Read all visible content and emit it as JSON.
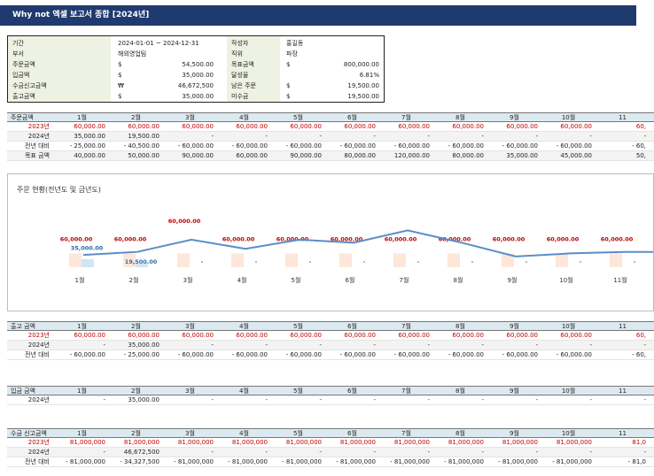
{
  "title": "Why not 엑셀 보고서 종합 [2024년]",
  "colors": {
    "title_bg": "#1f3a6e",
    "header_bg": "#dce9f0",
    "prev_year_red": "#c00000",
    "line_blue": "#5b8dc9",
    "bar_light": "#fde6da",
    "bar_blue": "#cfe6f4"
  },
  "summary": {
    "left": [
      {
        "label": "기간",
        "cur": "",
        "value": "2024-01-01 ~ 2024-12-31"
      },
      {
        "label": "부서",
        "cur": "",
        "value": "해외영업팀"
      },
      {
        "label": "주문금액",
        "cur": "$",
        "value": "54,500.00"
      },
      {
        "label": "입금액",
        "cur": "$",
        "value": "35,000.00"
      },
      {
        "label": "수금신고금액",
        "cur": "₩",
        "value": "46,672,500"
      },
      {
        "label": "출고금액",
        "cur": "$",
        "value": "35,000.00"
      }
    ],
    "right": [
      {
        "label": "작성자",
        "cur": "",
        "value": "홍길동"
      },
      {
        "label": "직위",
        "cur": "",
        "value": "파장"
      },
      {
        "label": "목표금액",
        "cur": "$",
        "value": "800,000.00"
      },
      {
        "label": "달성율",
        "cur": "",
        "value": "6.81%"
      },
      {
        "label": "남은 주문",
        "cur": "$",
        "value": "19,500.00"
      },
      {
        "label": "미수금",
        "cur": "$",
        "value": "19,500.00"
      }
    ]
  },
  "months": [
    "1월",
    "2월",
    "3월",
    "4월",
    "5월",
    "6월",
    "7월",
    "8월",
    "9월",
    "10월",
    "11"
  ],
  "orders": {
    "header": "주문금액",
    "rows": [
      {
        "label": "2023년",
        "cells": [
          "60,000.00",
          "60,000.00",
          "60,000.00",
          "60,000.00",
          "60,000.00",
          "60,000.00",
          "60,000.00",
          "60,000.00",
          "60,000.00",
          "60,000.00",
          "60,"
        ]
      },
      {
        "label": "2024년",
        "cells": [
          "35,000.00",
          "19,500.00",
          "-",
          "-",
          "-",
          "-",
          "-",
          "-",
          "-",
          "-",
          "-"
        ]
      },
      {
        "label": "전년 대비",
        "cells": [
          "- 25,000.00",
          "- 40,500.00",
          "- 60,000.00",
          "- 60,000.00",
          "- 60,000.00",
          "- 60,000.00",
          "- 60,000.00",
          "- 60,000.00",
          "- 60,000.00",
          "- 60,000.00",
          "- 60,"
        ]
      },
      {
        "label": "목표 금액",
        "cells": [
          "40,000.00",
          "50,000.00",
          "90,000.00",
          "60,000.00",
          "90,000.00",
          "80,000.00",
          "120,000.00",
          "80,000.00",
          "35,000.00",
          "45,000.00",
          "50,"
        ]
      }
    ]
  },
  "chart": {
    "title": "주문 현황(전년도 및 금년도)",
    "categories": [
      "1월",
      "2월",
      "3월",
      "4월",
      "5월",
      "6월",
      "7월",
      "8월",
      "9월",
      "10월",
      "11월"
    ],
    "chart_data": {
      "type": "bar",
      "categories": [
        "1월",
        "2월",
        "3월",
        "4월",
        "5월",
        "6월",
        "7월",
        "8월",
        "9월",
        "10월",
        "11월"
      ],
      "series": [
        {
          "name": "2023년",
          "values": [
            60000,
            60000,
            60000,
            60000,
            60000,
            60000,
            60000,
            60000,
            60000,
            60000,
            60000
          ],
          "labels": [
            "60,000.00",
            "60,000.00",
            "60,000.00",
            "60,000.00",
            "60,000.00",
            "60,000.00",
            "60,000.00",
            "60,000.00",
            "60,000.00",
            "60,000.00",
            "60,000.00"
          ]
        },
        {
          "name": "2024년",
          "values": [
            35000,
            19500,
            0,
            0,
            0,
            0,
            0,
            0,
            0,
            0,
            0
          ],
          "labels": [
            "35,000.00",
            "19,500.00",
            "-",
            "-",
            "-",
            "-",
            "-",
            "-",
            "-",
            "-",
            "-"
          ]
        },
        {
          "name": "목표 금액",
          "type": "line",
          "values": [
            40000,
            50000,
            90000,
            60000,
            90000,
            80000,
            120000,
            80000,
            35000,
            45000,
            50000
          ]
        }
      ],
      "ylim": [
        0,
        130000
      ],
      "title": "주문 현황(전년도 및 금년도)"
    }
  },
  "shipments": {
    "header": "출고 금액",
    "rows": [
      {
        "label": "2023년",
        "cells": [
          "60,000.00",
          "60,000.00",
          "60,000.00",
          "60,000.00",
          "60,000.00",
          "60,000.00",
          "60,000.00",
          "60,000.00",
          "60,000.00",
          "60,000.00",
          "60,"
        ]
      },
      {
        "label": "2024년",
        "cells": [
          "-",
          "35,000.00",
          "-",
          "-",
          "-",
          "-",
          "-",
          "-",
          "-",
          "-",
          "-"
        ]
      },
      {
        "label": "전년 대비",
        "cells": [
          "- 60,000.00",
          "- 25,000.00",
          "- 60,000.00",
          "- 60,000.00",
          "- 60,000.00",
          "- 60,000.00",
          "- 60,000.00",
          "- 60,000.00",
          "- 60,000.00",
          "- 60,000.00",
          "- 60,"
        ]
      }
    ]
  },
  "deposits": {
    "header": "입금 금액",
    "rows": [
      {
        "label": "2024년",
        "cells": [
          "-",
          "35,000.00",
          "-",
          "-",
          "-",
          "-",
          "-",
          "-",
          "-",
          "-",
          "-"
        ]
      }
    ]
  },
  "collections": {
    "header": "수금 신고금액",
    "rows": [
      {
        "label": "2023년",
        "cells": [
          "81,000,000",
          "81,000,000",
          "81,000,000",
          "81,000,000",
          "81,000,000",
          "81,000,000",
          "81,000,000",
          "81,000,000",
          "81,000,000",
          "81,000,000",
          "81,0"
        ]
      },
      {
        "label": "2024년",
        "cells": [
          "-",
          "46,672,500",
          "-",
          "-",
          "-",
          "-",
          "-",
          "-",
          "-",
          "-",
          "-"
        ]
      },
      {
        "label": "전년 대비",
        "cells": [
          "- 81,000,000",
          "- 34,327,500",
          "- 81,000,000",
          "- 81,000,000",
          "- 81,000,000",
          "- 81,000,000",
          "- 81,000,000",
          "- 81,000,000",
          "- 81,000,000",
          "- 81,000,000",
          "- 81,0"
        ]
      }
    ]
  }
}
